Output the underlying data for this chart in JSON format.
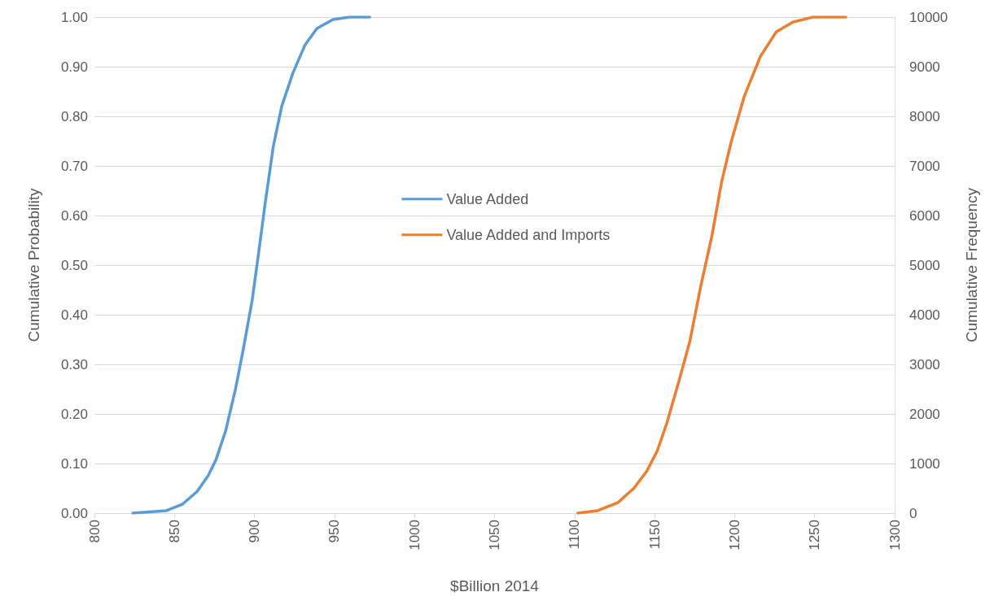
{
  "chart_data": {
    "type": "line",
    "xlabel": "$Billion 2014",
    "ylabel": "Cumulative Probability",
    "y2label": "Cumulative Frequency",
    "xlim": [
      800,
      1300
    ],
    "xticks": [
      800,
      850,
      900,
      950,
      1000,
      1050,
      1100,
      1150,
      1200,
      1250,
      1300
    ],
    "ylim": [
      0,
      1
    ],
    "yticks": [
      {
        "value": 0,
        "label": "0.00"
      },
      {
        "value": 0.1,
        "label": "0.10"
      },
      {
        "value": 0.2,
        "label": "0.20"
      },
      {
        "value": 0.3,
        "label": "0.30"
      },
      {
        "value": 0.4,
        "label": "0.40"
      },
      {
        "value": 0.5,
        "label": "0.50"
      },
      {
        "value": 0.6,
        "label": "0.60"
      },
      {
        "value": 0.7,
        "label": "0.70"
      },
      {
        "value": 0.8,
        "label": "0.80"
      },
      {
        "value": 0.9,
        "label": "0.90"
      },
      {
        "value": 1,
        "label": "1.00"
      }
    ],
    "y2lim": [
      0,
      10000
    ],
    "y2ticks": [
      0,
      1000,
      2000,
      3000,
      4000,
      5000,
      6000,
      7000,
      8000,
      9000,
      10000
    ],
    "grid": "y",
    "legend": "center",
    "marker": "none",
    "line_style": "solid",
    "series": [
      {
        "name": "Value Added",
        "color": "#5b9bd5",
        "x": [
          824,
          845,
          855,
          864,
          871,
          876,
          882,
          888,
          893,
          898.6,
          902.6,
          906.7,
          911.8,
          917,
          924,
          931.6,
          939,
          949,
          959.5,
          972
        ],
        "values": [
          0,
          0.005,
          0.018,
          0.043,
          0.075,
          0.108,
          0.166,
          0.248,
          0.33,
          0.43,
          0.525,
          0.625,
          0.74,
          0.82,
          0.887,
          0.944,
          0.977,
          0.995,
          1.0,
          1.0
        ]
      },
      {
        "name": "Value Added and Imports",
        "color": "#ed7d31",
        "x": [
          1102,
          1114.5,
          1127,
          1137,
          1145,
          1151.6,
          1157.7,
          1165,
          1172,
          1179,
          1185.7,
          1192,
          1198,
          1206,
          1216,
          1226,
          1236.5,
          1249,
          1269.5
        ],
        "values": [
          0,
          0.005,
          0.021,
          0.05,
          0.084,
          0.125,
          0.182,
          0.264,
          0.346,
          0.46,
          0.557,
          0.67,
          0.75,
          0.84,
          0.92,
          0.97,
          0.99,
          1.0,
          1.0
        ]
      }
    ]
  }
}
